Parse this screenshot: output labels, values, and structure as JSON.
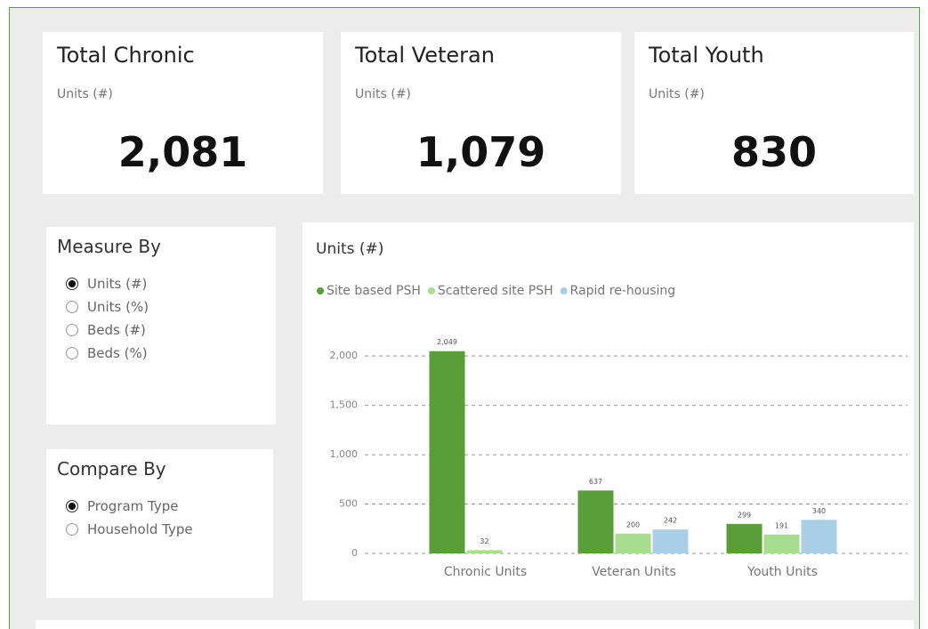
{
  "cards": [
    {
      "title": "Total Chronic",
      "subtitle": "Units (#)",
      "value": "2,081"
    },
    {
      "title": "Total Veteran",
      "subtitle": "Units (#)",
      "value": "1,079"
    },
    {
      "title": "Total Youth",
      "subtitle": "Units (#)",
      "value": "830"
    }
  ],
  "measure_by": {
    "title": "Measure By",
    "options": [
      "Units (#)",
      "Units (%)",
      "Beds (#)",
      "Beds (%)"
    ],
    "selected": 0
  },
  "compare_by": {
    "title": "Compare By",
    "options": [
      "Program Type",
      "Household Type"
    ],
    "selected": 0
  },
  "chart_data": {
    "type": "bar",
    "title": "Units (#)",
    "categories": [
      "Chronic Units",
      "Veteran Units",
      "Youth Units"
    ],
    "series": [
      {
        "name": "Site based PSH",
        "color": "#5a9e3a",
        "values": [
          2049,
          637,
          299
        ],
        "value_labels": [
          "2,049",
          "637",
          "299"
        ]
      },
      {
        "name": "Scattered site PSH",
        "color": "#a8dc8e",
        "values": [
          32,
          200,
          191
        ],
        "value_labels": [
          "32",
          "200",
          "191"
        ]
      },
      {
        "name": "Rapid re-housing",
        "color": "#a9cfe6",
        "values": [
          null,
          242,
          340
        ],
        "value_labels": [
          null,
          "242",
          "340"
        ]
      }
    ],
    "ylim": [
      0,
      2200
    ],
    "yticks": [
      0,
      500,
      {
        "value": 1000,
        "label": "1,000"
      },
      {
        "value": 1500,
        "label": "1,500"
      },
      {
        "value": 2000,
        "label": "2,000"
      }
    ],
    "grid": true
  }
}
